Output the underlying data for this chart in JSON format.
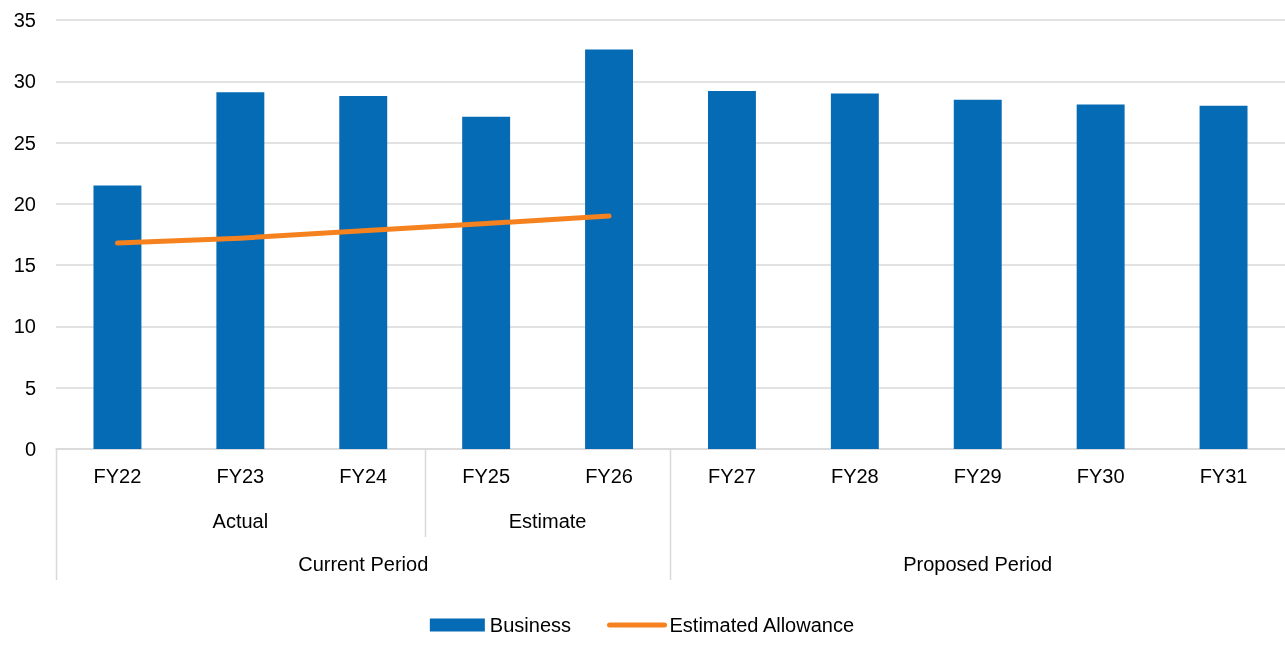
{
  "chart_data": {
    "type": "bar",
    "categories": [
      "FY22",
      "FY23",
      "FY24",
      "FY25",
      "FY26",
      "FY27",
      "FY28",
      "FY29",
      "FY30",
      "FY31"
    ],
    "series": [
      {
        "name": "Business",
        "color": "#056bb4",
        "values": [
          21.5,
          29.1,
          28.8,
          27.1,
          32.6,
          29.2,
          29.0,
          28.5,
          28.1,
          28.0
        ]
      },
      {
        "name": "Estimated Allowance",
        "type": "line",
        "color": "#f5821f",
        "values": [
          16.8,
          17.2,
          17.8,
          18.4,
          19.0,
          null,
          null,
          null,
          null,
          null
        ]
      }
    ],
    "ylim": [
      0,
      35
    ],
    "yticks": [
      0,
      5,
      10,
      15,
      20,
      25,
      30,
      35
    ],
    "grid": "y",
    "legend": "bottom",
    "marker": "none",
    "line_style": "solid",
    "annotations": [
      "Actual",
      "Estimate",
      "Current Period",
      "Proposed Period"
    ]
  }
}
